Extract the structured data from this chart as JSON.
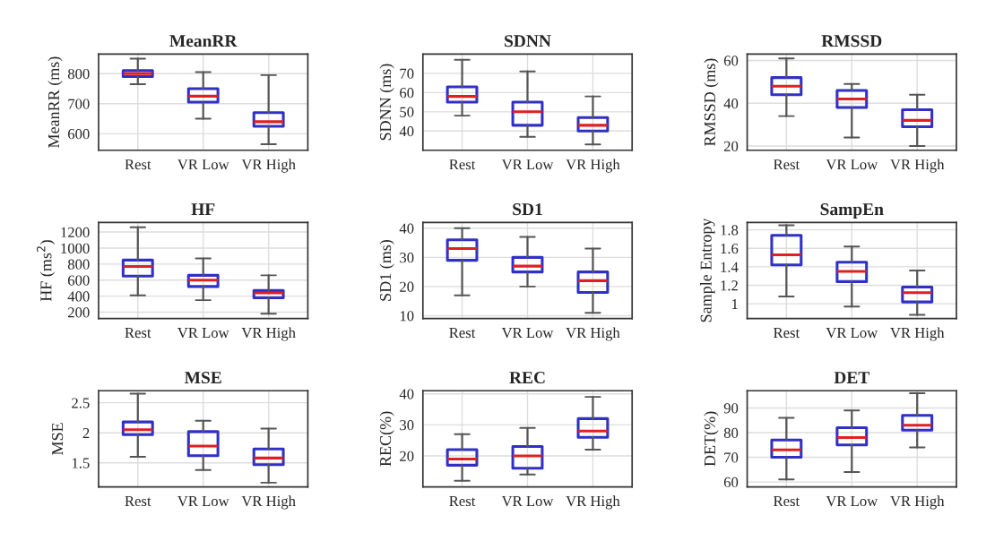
{
  "chart_data": [
    {
      "type": "box",
      "title": "MeanRR",
      "ylabel": "MeanRR (ms)",
      "categories": [
        "Rest",
        "VR Low",
        "VR High"
      ],
      "ylim": [
        545,
        865
      ],
      "yticks": [
        600,
        700,
        800
      ],
      "grid": true,
      "series": [
        {
          "color": "#3030c8",
          "boxes": [
            {
              "low": 765,
              "q1": 790,
              "median": 800,
              "q3": 810,
              "high": 850
            },
            {
              "low": 650,
              "q1": 705,
              "median": 725,
              "q3": 750,
              "high": 805
            },
            {
              "low": 565,
              "q1": 625,
              "median": 640,
              "q3": 670,
              "high": 795
            }
          ]
        }
      ]
    },
    {
      "type": "box",
      "title": "SDNN",
      "ylabel": "SDNN (ms)",
      "categories": [
        "Rest",
        "VR Low",
        "VR High"
      ],
      "ylim": [
        30,
        80
      ],
      "yticks": [
        40,
        50,
        60,
        70
      ],
      "grid": true,
      "series": [
        {
          "color": "#3030c8",
          "boxes": [
            {
              "low": 48,
              "q1": 55,
              "median": 58,
              "q3": 63,
              "high": 77
            },
            {
              "low": 37,
              "q1": 43,
              "median": 50,
              "q3": 55,
              "high": 71
            },
            {
              "low": 33,
              "q1": 40,
              "median": 43,
              "q3": 47,
              "high": 58
            }
          ]
        }
      ]
    },
    {
      "type": "box",
      "title": "RMSSD",
      "ylabel": "RMSSD (ms)",
      "categories": [
        "Rest",
        "VR Low",
        "VR High"
      ],
      "ylim": [
        18,
        63
      ],
      "yticks": [
        20,
        40,
        60
      ],
      "grid": true,
      "series": [
        {
          "color": "#3030c8",
          "boxes": [
            {
              "low": 34,
              "q1": 44,
              "median": 48,
              "q3": 52,
              "high": 61
            },
            {
              "low": 24,
              "q1": 38,
              "median": 42,
              "q3": 46,
              "high": 49
            },
            {
              "low": 20,
              "q1": 29,
              "median": 32,
              "q3": 37,
              "high": 44
            }
          ]
        }
      ]
    },
    {
      "type": "box",
      "title": "HF",
      "ylabel": "HF (ms$^{2}$)",
      "categories": [
        "Rest",
        "VR Low",
        "VR High"
      ],
      "ylim": [
        120,
        1320
      ],
      "yticks": [
        200,
        400,
        600,
        800,
        1000,
        1200
      ],
      "grid": true,
      "series": [
        {
          "color": "#3030c8",
          "boxes": [
            {
              "low": 410,
              "q1": 650,
              "median": 770,
              "q3": 850,
              "high": 1260
            },
            {
              "low": 350,
              "q1": 520,
              "median": 600,
              "q3": 660,
              "high": 870
            },
            {
              "low": 180,
              "q1": 380,
              "median": 440,
              "q3": 470,
              "high": 660
            }
          ]
        }
      ]
    },
    {
      "type": "box",
      "title": "SD1",
      "ylabel": "SD1 (ms)",
      "categories": [
        "Rest",
        "VR Low",
        "VR High"
      ],
      "ylim": [
        9,
        42
      ],
      "yticks": [
        10,
        20,
        30,
        40
      ],
      "grid": true,
      "series": [
        {
          "color": "#3030c8",
          "boxes": [
            {
              "low": 17,
              "q1": 29,
              "median": 33,
              "q3": 36,
              "high": 40
            },
            {
              "low": 20,
              "q1": 25,
              "median": 27,
              "q3": 30,
              "high": 37
            },
            {
              "low": 11,
              "q1": 18,
              "median": 22,
              "q3": 25,
              "high": 33
            }
          ]
        }
      ]
    },
    {
      "type": "box",
      "title": "SampEn",
      "ylabel": "Sample Entropy",
      "categories": [
        "Rest",
        "VR Low",
        "VR High"
      ],
      "ylim": [
        0.84,
        1.88
      ],
      "yticks": [
        1,
        1.2,
        1.4,
        1.6,
        1.8
      ],
      "grid": true,
      "series": [
        {
          "color": "#3030c8",
          "boxes": [
            {
              "low": 1.08,
              "q1": 1.42,
              "median": 1.53,
              "q3": 1.74,
              "high": 1.85
            },
            {
              "low": 0.97,
              "q1": 1.24,
              "median": 1.35,
              "q3": 1.45,
              "high": 1.62
            },
            {
              "low": 0.88,
              "q1": 1.02,
              "median": 1.12,
              "q3": 1.18,
              "high": 1.36
            }
          ]
        }
      ]
    },
    {
      "type": "box",
      "title": "MSE",
      "ylabel": "MSE",
      "categories": [
        "Rest",
        "VR Low",
        "VR High"
      ],
      "ylim": [
        1.1,
        2.7
      ],
      "yticks": [
        1.5,
        2,
        2.5
      ],
      "grid": true,
      "series": [
        {
          "color": "#3030c8",
          "boxes": [
            {
              "low": 1.6,
              "q1": 1.97,
              "median": 2.05,
              "q3": 2.18,
              "high": 2.65
            },
            {
              "low": 1.38,
              "q1": 1.62,
              "median": 1.78,
              "q3": 2.02,
              "high": 2.2
            },
            {
              "low": 1.17,
              "q1": 1.47,
              "median": 1.58,
              "q3": 1.73,
              "high": 2.07
            }
          ]
        }
      ]
    },
    {
      "type": "box",
      "title": "REC",
      "ylabel": "REC(%)",
      "categories": [
        "Rest",
        "VR Low",
        "VR High"
      ],
      "ylim": [
        10,
        41
      ],
      "yticks": [
        20,
        30,
        40
      ],
      "grid": true,
      "series": [
        {
          "color": "#3030c8",
          "boxes": [
            {
              "low": 12,
              "q1": 17,
              "median": 19,
              "q3": 22,
              "high": 27
            },
            {
              "low": 14,
              "q1": 16,
              "median": 20,
              "q3": 23,
              "high": 29
            },
            {
              "low": 22,
              "q1": 26,
              "median": 28,
              "q3": 32,
              "high": 39
            }
          ]
        }
      ]
    },
    {
      "type": "box",
      "title": "DET",
      "ylabel": "DET(%)",
      "categories": [
        "Rest",
        "VR Low",
        "VR High"
      ],
      "ylim": [
        58,
        97
      ],
      "yticks": [
        60,
        70,
        80,
        90
      ],
      "grid": true,
      "series": [
        {
          "color": "#3030c8",
          "boxes": [
            {
              "low": 61,
              "q1": 70,
              "median": 73,
              "q3": 77,
              "high": 86
            },
            {
              "low": 64,
              "q1": 75,
              "median": 78,
              "q3": 82,
              "high": 89
            },
            {
              "low": 74,
              "q1": 81,
              "median": 83,
              "q3": 87,
              "high": 96
            }
          ]
        }
      ]
    }
  ]
}
